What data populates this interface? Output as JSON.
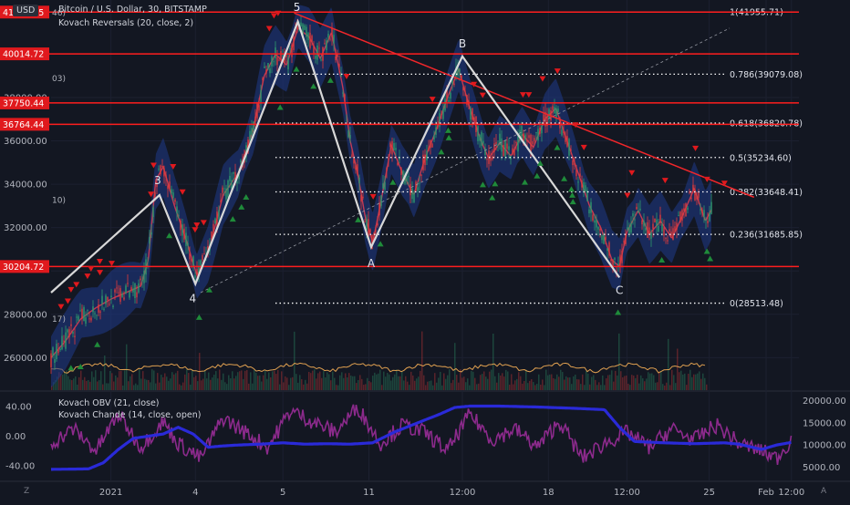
{
  "header": {
    "currency_badge": "USD",
    "symbol_title": "Bitcoin / U.S. Dollar, 30, BITSTAMP",
    "indicator_title": "Kovach Reversals (20, close, 2)"
  },
  "sub_pane": {
    "obv_title": "Kovach OBV (21, close)",
    "chande_title": "Kovach Chande (14, close, open)"
  },
  "corner_labels": {
    "bottom_left": "Z",
    "bottom_right": "A"
  },
  "colors": {
    "background": "#131722",
    "level_line": "#ff1e1e",
    "price_tag_bg": "#e0191d",
    "wave_line": "#d8d8d8",
    "trend_line": "#f0262a",
    "band": "#1f3a8a",
    "candle_up": "#2e9b6e",
    "candle_down": "#e03a3a",
    "obv": "#2a2ad8",
    "chande": "#8c2a8c",
    "buy_arrow": "#1f8b3a",
    "sell_arrow": "#e0191d"
  },
  "chart_data": [
    {
      "type": "line",
      "title": "Bitcoin / U.S. Dollar, 30, BITSTAMP",
      "x_ticks": [
        "2021",
        "4",
        "5",
        "11",
        "12:00",
        "18",
        "12:00",
        "25",
        "12:00",
        "Feb"
      ],
      "y_ticks": [
        26000,
        28000,
        30000,
        32000,
        34000,
        36000,
        38000
      ],
      "y_tick_labels": [
        "26000.00",
        "28000.00",
        "",
        "32000.00",
        "34000.00",
        "36000.00",
        "38000.00"
      ],
      "ylim": [
        24500,
        42500
      ],
      "price_tags": [
        {
          "value": 41942.05,
          "label": "41942.05"
        },
        {
          "value": 40014.72,
          "label": "40014.72"
        },
        {
          "value": 37750.44,
          "label": "37750.44"
        },
        {
          "value": 36764.44,
          "label": "36764.44"
        },
        {
          "value": 30204.72,
          "label": "30204.72"
        }
      ],
      "fibonacci_levels": [
        {
          "value": 39079.08,
          "label": "0.786(39079.08)"
        },
        {
          "value": 36820.78,
          "label": "0.618(36820.78)"
        },
        {
          "value": 35234.6,
          "label": "0.5(35234.60)"
        },
        {
          "value": 33648.41,
          "label": "0.382(33648.41)"
        },
        {
          "value": 31685.85,
          "label": "0.236(31685.85)"
        },
        {
          "value": 28513.48,
          "label": "0(28513.48)"
        },
        {
          "value": 41955.71,
          "label": "1(41955.71)"
        }
      ],
      "left_edge_fragments": [
        {
          "value": 42800,
          "label": "4"
        },
        {
          "value": 41942,
          "label": "46)"
        },
        {
          "value": 38900,
          "label": "03)"
        },
        {
          "value": 33300,
          "label": "10)"
        },
        {
          "value": 27800,
          "label": "17)"
        }
      ],
      "wave_points": [
        {
          "label": "",
          "t": 0.0,
          "price": 29000
        },
        {
          "label": "3",
          "t": 0.145,
          "price": 33500
        },
        {
          "label": "4",
          "t": 0.193,
          "price": 29400
        },
        {
          "label": "5",
          "t": 0.33,
          "price": 41500
        },
        {
          "label": "A",
          "t": 0.428,
          "price": 31100
        },
        {
          "label": "B",
          "t": 0.55,
          "price": 39900
        },
        {
          "label": "C",
          "t": 0.76,
          "price": 29700
        }
      ],
      "price_path": [
        [
          0.0,
          26000
        ],
        [
          0.02,
          26800
        ],
        [
          0.04,
          27800
        ],
        [
          0.06,
          28300
        ],
        [
          0.08,
          28700
        ],
        [
          0.1,
          29000
        ],
        [
          0.12,
          29300
        ],
        [
          0.13,
          30500
        ],
        [
          0.14,
          34200
        ],
        [
          0.15,
          34800
        ],
        [
          0.165,
          33000
        ],
        [
          0.18,
          31500
        ],
        [
          0.195,
          29800
        ],
        [
          0.21,
          30800
        ],
        [
          0.23,
          33500
        ],
        [
          0.25,
          34500
        ],
        [
          0.27,
          36500
        ],
        [
          0.285,
          39000
        ],
        [
          0.3,
          40000
        ],
        [
          0.315,
          39500
        ],
        [
          0.33,
          41200
        ],
        [
          0.345,
          40800
        ],
        [
          0.36,
          39800
        ],
        [
          0.375,
          41000
        ],
        [
          0.39,
          38500
        ],
        [
          0.4,
          36000
        ],
        [
          0.41,
          34500
        ],
        [
          0.42,
          32500
        ],
        [
          0.43,
          31300
        ],
        [
          0.44,
          33000
        ],
        [
          0.455,
          35800
        ],
        [
          0.47,
          34500
        ],
        [
          0.485,
          33500
        ],
        [
          0.5,
          35200
        ],
        [
          0.515,
          36500
        ],
        [
          0.53,
          38000
        ],
        [
          0.545,
          39300
        ],
        [
          0.56,
          37500
        ],
        [
          0.575,
          36000
        ],
        [
          0.585,
          35200
        ],
        [
          0.6,
          35900
        ],
        [
          0.615,
          35300
        ],
        [
          0.63,
          36300
        ],
        [
          0.645,
          35700
        ],
        [
          0.66,
          37000
        ],
        [
          0.675,
          37500
        ],
        [
          0.69,
          36000
        ],
        [
          0.705,
          34500
        ],
        [
          0.72,
          33000
        ],
        [
          0.735,
          32000
        ],
        [
          0.75,
          30500
        ],
        [
          0.76,
          30200
        ],
        [
          0.77,
          31800
        ],
        [
          0.785,
          32800
        ],
        [
          0.8,
          31700
        ],
        [
          0.815,
          32300
        ],
        [
          0.83,
          31500
        ],
        [
          0.845,
          32600
        ],
        [
          0.86,
          33800
        ],
        [
          0.875,
          32300
        ],
        [
          0.89,
          33300
        ],
        [
          0.905,
          31800
        ],
        [
          0.92,
          31300
        ],
        [
          0.935,
          30200
        ],
        [
          0.95,
          31500
        ],
        [
          0.96,
          33500
        ],
        [
          0.97,
          34800
        ],
        [
          0.98,
          37500
        ],
        [
          0.99,
          38500
        ]
      ]
    },
    {
      "type": "line",
      "title": "",
      "series": [
        {
          "name": "Kovach OBV (21, close)",
          "values": [
            [
              0.0,
              4500
            ],
            [
              0.05,
              4600
            ],
            [
              0.07,
              6000
            ],
            [
              0.09,
              9000
            ],
            [
              0.11,
              11500
            ],
            [
              0.13,
              12000
            ],
            [
              0.15,
              12500
            ],
            [
              0.17,
              14000
            ],
            [
              0.19,
              12500
            ],
            [
              0.21,
              9500
            ],
            [
              0.23,
              9800
            ],
            [
              0.25,
              10000
            ],
            [
              0.28,
              10200
            ],
            [
              0.31,
              10500
            ],
            [
              0.34,
              10200
            ],
            [
              0.37,
              10300
            ],
            [
              0.4,
              10200
            ],
            [
              0.43,
              10500
            ],
            [
              0.46,
              13000
            ],
            [
              0.49,
              15000
            ],
            [
              0.52,
              17000
            ],
            [
              0.54,
              18500
            ],
            [
              0.56,
              18800
            ],
            [
              0.6,
              18800
            ],
            [
              0.65,
              18600
            ],
            [
              0.7,
              18300
            ],
            [
              0.74,
              18000
            ],
            [
              0.76,
              14000
            ],
            [
              0.78,
              10800
            ],
            [
              0.82,
              10500
            ],
            [
              0.86,
              10300
            ],
            [
              0.9,
              10500
            ],
            [
              0.92,
              10200
            ],
            [
              0.95,
              9000
            ],
            [
              0.97,
              10000
            ],
            [
              0.99,
              10600
            ]
          ]
        },
        {
          "name": "Kovach Chande (14, close, open)",
          "values": [
            [
              0.0,
              -10
            ],
            [
              0.03,
              10
            ],
            [
              0.06,
              -20
            ],
            [
              0.09,
              30
            ],
            [
              0.12,
              -15
            ],
            [
              0.15,
              20
            ],
            [
              0.17,
              -10
            ],
            [
              0.2,
              -30
            ],
            [
              0.23,
              25
            ],
            [
              0.26,
              5
            ],
            [
              0.29,
              -15
            ],
            [
              0.32,
              35
            ],
            [
              0.35,
              20
            ],
            [
              0.38,
              5
            ],
            [
              0.41,
              40
            ],
            [
              0.44,
              -10
            ],
            [
              0.47,
              15
            ],
            [
              0.5,
              5
            ],
            [
              0.53,
              -20
            ],
            [
              0.56,
              30
            ],
            [
              0.59,
              -5
            ],
            [
              0.62,
              10
            ],
            [
              0.65,
              -15
            ],
            [
              0.68,
              20
            ],
            [
              0.71,
              -30
            ],
            [
              0.74,
              -10
            ],
            [
              0.77,
              5
            ],
            [
              0.8,
              -15
            ],
            [
              0.83,
              10
            ],
            [
              0.86,
              -5
            ],
            [
              0.89,
              15
            ],
            [
              0.92,
              -10
            ],
            [
              0.95,
              -20
            ],
            [
              0.97,
              -30
            ],
            [
              0.99,
              -5
            ]
          ]
        }
      ],
      "y_ticks_left": [
        40,
        0,
        -40
      ],
      "y_tick_labels_left": [
        "40.00",
        "0.00",
        "-40.00"
      ],
      "y_ticks_right": [
        20000,
        15000,
        10000,
        5000
      ],
      "y_tick_labels_right": [
        "20000.00",
        "15000.00",
        "10000.00",
        "5000.00"
      ],
      "ylim_left": [
        -60,
        60
      ],
      "ylim_right": [
        2000,
        22000
      ]
    }
  ]
}
